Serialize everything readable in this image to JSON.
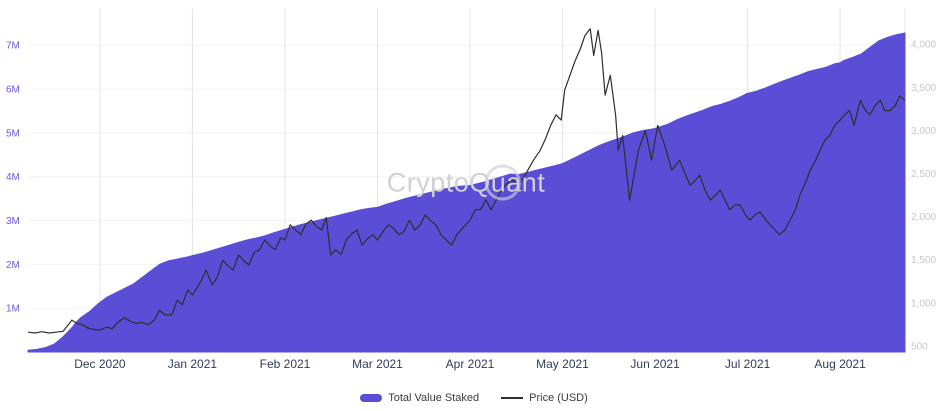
{
  "watermark": "CryptoQuant",
  "legend": {
    "staked": "Total Value Staked",
    "price": "Price (USD)"
  },
  "colors": {
    "area": "#5A4DD6",
    "price_line": "#2f2f2f",
    "left_axis_text": "#6a5ae0",
    "right_axis_text": "#c4c7d1",
    "x_axis_text": "#2e3d54",
    "grid_vertical": "#e4e4ec",
    "grid_horizontal": "#f2f2f6",
    "watermark": "#d0d1d6",
    "legend_text": "#3c3c3c"
  },
  "chart_data": {
    "type": "area",
    "title": "",
    "xlabel": "",
    "ylabel_left": "Total Value Staked",
    "ylabel_right": "Price (USD)",
    "grid": true,
    "legend_position": "bottom",
    "x_ticks": [
      {
        "label": "Dec 2020",
        "pos": 8.2
      },
      {
        "label": "Jan 2021",
        "pos": 18.75
      },
      {
        "label": "Feb 2021",
        "pos": 29.3
      },
      {
        "label": "Mar 2021",
        "pos": 39.85
      },
      {
        "label": "Apr 2021",
        "pos": 50.4
      },
      {
        "label": "May 2021",
        "pos": 60.95
      },
      {
        "label": "Jun 2021",
        "pos": 71.5
      },
      {
        "label": "Jul 2021",
        "pos": 82.05
      },
      {
        "label": "Aug 2021",
        "pos": 92.6
      }
    ],
    "left_axis": {
      "min_value": 0,
      "max_value": 7.85,
      "unit": "M",
      "ticks": [
        {
          "label": "7M",
          "value": 7
        },
        {
          "label": "6M",
          "value": 6
        },
        {
          "label": "5M",
          "value": 5
        },
        {
          "label": "4M",
          "value": 4
        },
        {
          "label": "3M",
          "value": 3
        },
        {
          "label": "2M",
          "value": 2
        },
        {
          "label": "1M",
          "value": 1
        }
      ]
    },
    "right_axis": {
      "min_value": 430,
      "max_value": 4420,
      "unit": "USD",
      "ticks": [
        {
          "label": "4,000",
          "value": 4000
        },
        {
          "label": "3,500",
          "value": 3500
        },
        {
          "label": "3,000",
          "value": 3000
        },
        {
          "label": "2,500",
          "value": 2500
        },
        {
          "label": "2,000",
          "value": 2000
        },
        {
          "label": "1,500",
          "value": 1500
        },
        {
          "label": "1,000",
          "value": 1000
        },
        {
          "label": "500",
          "value": 500
        }
      ]
    },
    "series": [
      {
        "name": "Total Value Staked",
        "type": "area",
        "axis": "left",
        "unit": "M",
        "points": [
          [
            0,
            0.04
          ],
          [
            1,
            0.06
          ],
          [
            2,
            0.1
          ],
          [
            3,
            0.18
          ],
          [
            4,
            0.35
          ],
          [
            5,
            0.55
          ],
          [
            5.5,
            0.68
          ],
          [
            6,
            0.78
          ],
          [
            7,
            0.92
          ],
          [
            8,
            1.1
          ],
          [
            9,
            1.25
          ],
          [
            10,
            1.35
          ],
          [
            11,
            1.45
          ],
          [
            12,
            1.55
          ],
          [
            13,
            1.7
          ],
          [
            14,
            1.85
          ],
          [
            15,
            2.0
          ],
          [
            16,
            2.08
          ],
          [
            17,
            2.12
          ],
          [
            18,
            2.16
          ],
          [
            18.75,
            2.2
          ],
          [
            20,
            2.26
          ],
          [
            21,
            2.32
          ],
          [
            22,
            2.38
          ],
          [
            23,
            2.44
          ],
          [
            24,
            2.5
          ],
          [
            25,
            2.56
          ],
          [
            26,
            2.6
          ],
          [
            27,
            2.65
          ],
          [
            28,
            2.72
          ],
          [
            29.3,
            2.8
          ],
          [
            31,
            2.9
          ],
          [
            32,
            2.95
          ],
          [
            33,
            3.0
          ],
          [
            34,
            3.05
          ],
          [
            35,
            3.1
          ],
          [
            36,
            3.15
          ],
          [
            37,
            3.2
          ],
          [
            38,
            3.25
          ],
          [
            39,
            3.28
          ],
          [
            39.85,
            3.3
          ],
          [
            41,
            3.38
          ],
          [
            42,
            3.44
          ],
          [
            43,
            3.5
          ],
          [
            44,
            3.55
          ],
          [
            45,
            3.6
          ],
          [
            46,
            3.65
          ],
          [
            47,
            3.7
          ],
          [
            48,
            3.74
          ],
          [
            49,
            3.78
          ],
          [
            50.4,
            3.8
          ],
          [
            52,
            3.88
          ],
          [
            53,
            3.94
          ],
          [
            54,
            4.0
          ],
          [
            55,
            4.06
          ],
          [
            56,
            4.05
          ],
          [
            58,
            4.15
          ],
          [
            60,
            4.25
          ],
          [
            60.95,
            4.3
          ],
          [
            62,
            4.4
          ],
          [
            63,
            4.5
          ],
          [
            64,
            4.6
          ],
          [
            65,
            4.7
          ],
          [
            66,
            4.78
          ],
          [
            67,
            4.85
          ],
          [
            68,
            4.92
          ],
          [
            69,
            5.0
          ],
          [
            70,
            5.05
          ],
          [
            71.5,
            5.1
          ],
          [
            73,
            5.2
          ],
          [
            74,
            5.3
          ],
          [
            75,
            5.38
          ],
          [
            76,
            5.45
          ],
          [
            77,
            5.52
          ],
          [
            78,
            5.6
          ],
          [
            79,
            5.65
          ],
          [
            80,
            5.72
          ],
          [
            81,
            5.8
          ],
          [
            82,
            5.9
          ],
          [
            83,
            5.95
          ],
          [
            84,
            6.02
          ],
          [
            85,
            6.1
          ],
          [
            86,
            6.18
          ],
          [
            87,
            6.25
          ],
          [
            88,
            6.32
          ],
          [
            89,
            6.4
          ],
          [
            90,
            6.45
          ],
          [
            91,
            6.5
          ],
          [
            92,
            6.58
          ],
          [
            92.6,
            6.6
          ],
          [
            93,
            6.65
          ],
          [
            94,
            6.72
          ],
          [
            95,
            6.8
          ],
          [
            96,
            6.95
          ],
          [
            97,
            7.1
          ],
          [
            98,
            7.18
          ],
          [
            99,
            7.24
          ],
          [
            100,
            7.28
          ]
        ]
      },
      {
        "name": "Price (USD)",
        "type": "line",
        "axis": "right",
        "unit": "USD",
        "points": [
          [
            0,
            660
          ],
          [
            0.8,
            650
          ],
          [
            1.6,
            665
          ],
          [
            2.4,
            650
          ],
          [
            3.2,
            660
          ],
          [
            4,
            670
          ],
          [
            4.6,
            745
          ],
          [
            5,
            800
          ],
          [
            5.6,
            760
          ],
          [
            6.2,
            745
          ],
          [
            7,
            700
          ],
          [
            7.6,
            690
          ],
          [
            8.2,
            685
          ],
          [
            9,
            720
          ],
          [
            9.6,
            700
          ],
          [
            10.3,
            780
          ],
          [
            11,
            825
          ],
          [
            11.6,
            790
          ],
          [
            12.3,
            760
          ],
          [
            13,
            775
          ],
          [
            13.7,
            745
          ],
          [
            14.4,
            800
          ],
          [
            15,
            915
          ],
          [
            15.6,
            860
          ],
          [
            16.4,
            860
          ],
          [
            17,
            1030
          ],
          [
            17.6,
            980
          ],
          [
            18.2,
            1150
          ],
          [
            18.75,
            1090
          ],
          [
            19.3,
            1180
          ],
          [
            19.8,
            1265
          ],
          [
            20.3,
            1380
          ],
          [
            21,
            1210
          ],
          [
            21.6,
            1300
          ],
          [
            22.2,
            1495
          ],
          [
            22.8,
            1430
          ],
          [
            23.4,
            1380
          ],
          [
            24,
            1555
          ],
          [
            24.6,
            1490
          ],
          [
            25.2,
            1440
          ],
          [
            25.8,
            1585
          ],
          [
            26.4,
            1615
          ],
          [
            27,
            1730
          ],
          [
            27.6,
            1660
          ],
          [
            28.2,
            1615
          ],
          [
            28.8,
            1755
          ],
          [
            29.3,
            1730
          ],
          [
            29.9,
            1905
          ],
          [
            30.5,
            1845
          ],
          [
            31.1,
            1790
          ],
          [
            31.7,
            1915
          ],
          [
            32.3,
            1960
          ],
          [
            32.9,
            1885
          ],
          [
            33.5,
            1845
          ],
          [
            34,
            1990
          ],
          [
            34.5,
            1555
          ],
          [
            35.1,
            1615
          ],
          [
            35.7,
            1560
          ],
          [
            36.3,
            1730
          ],
          [
            36.9,
            1800
          ],
          [
            37.5,
            1845
          ],
          [
            38.1,
            1670
          ],
          [
            38.7,
            1745
          ],
          [
            39.3,
            1790
          ],
          [
            39.85,
            1730
          ],
          [
            40.5,
            1830
          ],
          [
            41.1,
            1905
          ],
          [
            41.7,
            1860
          ],
          [
            42.3,
            1790
          ],
          [
            42.9,
            1830
          ],
          [
            43.5,
            1960
          ],
          [
            44.1,
            1845
          ],
          [
            44.7,
            1900
          ],
          [
            45.3,
            2020
          ],
          [
            45.9,
            1955
          ],
          [
            46.5,
            1905
          ],
          [
            47.1,
            1790
          ],
          [
            47.7,
            1730
          ],
          [
            48.3,
            1670
          ],
          [
            48.9,
            1790
          ],
          [
            49.5,
            1860
          ],
          [
            50.4,
            1960
          ],
          [
            51,
            2080
          ],
          [
            51.6,
            2080
          ],
          [
            52.2,
            2195
          ],
          [
            52.8,
            2080
          ],
          [
            53.4,
            2195
          ],
          [
            54,
            2310
          ],
          [
            54.6,
            2380
          ],
          [
            55.2,
            2425
          ],
          [
            55.8,
            2370
          ],
          [
            56.4,
            2430
          ],
          [
            57,
            2540
          ],
          [
            57.6,
            2650
          ],
          [
            58.4,
            2770
          ],
          [
            59,
            2900
          ],
          [
            59.6,
            3060
          ],
          [
            60.2,
            3180
          ],
          [
            60.8,
            3120
          ],
          [
            61.2,
            3470
          ],
          [
            61.8,
            3640
          ],
          [
            62.4,
            3810
          ],
          [
            63,
            3950
          ],
          [
            63.5,
            4100
          ],
          [
            64.1,
            4180
          ],
          [
            64.5,
            3870
          ],
          [
            65,
            4160
          ],
          [
            65.4,
            3900
          ],
          [
            65.8,
            3410
          ],
          [
            66.4,
            3640
          ],
          [
            67,
            3180
          ],
          [
            67.3,
            2770
          ],
          [
            67.8,
            2940
          ],
          [
            68.6,
            2190
          ],
          [
            69.2,
            2540
          ],
          [
            69.6,
            2770
          ],
          [
            70.4,
            3000
          ],
          [
            71.1,
            2655
          ],
          [
            71.8,
            3060
          ],
          [
            72.6,
            2830
          ],
          [
            73.4,
            2540
          ],
          [
            74.3,
            2655
          ],
          [
            75,
            2480
          ],
          [
            75.5,
            2365
          ],
          [
            76.1,
            2420
          ],
          [
            76.6,
            2480
          ],
          [
            77.2,
            2310
          ],
          [
            77.8,
            2190
          ],
          [
            78.4,
            2250
          ],
          [
            78.9,
            2310
          ],
          [
            79.5,
            2190
          ],
          [
            80,
            2080
          ],
          [
            80.6,
            2135
          ],
          [
            81.2,
            2135
          ],
          [
            81.8,
            2020
          ],
          [
            82.3,
            1960
          ],
          [
            82.9,
            2020
          ],
          [
            83.5,
            2055
          ],
          [
            84,
            1980
          ],
          [
            84.6,
            1905
          ],
          [
            85.2,
            1845
          ],
          [
            85.7,
            1790
          ],
          [
            86.3,
            1845
          ],
          [
            86.9,
            1960
          ],
          [
            87.5,
            2080
          ],
          [
            88,
            2250
          ],
          [
            88.6,
            2380
          ],
          [
            89.2,
            2540
          ],
          [
            89.8,
            2650
          ],
          [
            90.3,
            2770
          ],
          [
            90.9,
            2890
          ],
          [
            91.4,
            2940
          ],
          [
            92,
            3060
          ],
          [
            92.6,
            3120
          ],
          [
            93.1,
            3180
          ],
          [
            93.7,
            3230
          ],
          [
            94.2,
            3060
          ],
          [
            94.9,
            3350
          ],
          [
            95.5,
            3230
          ],
          [
            96,
            3180
          ],
          [
            96.6,
            3290
          ],
          [
            97.2,
            3350
          ],
          [
            97.7,
            3230
          ],
          [
            98.3,
            3230
          ],
          [
            98.9,
            3290
          ],
          [
            99.4,
            3400
          ],
          [
            100,
            3350
          ]
        ]
      }
    ]
  }
}
